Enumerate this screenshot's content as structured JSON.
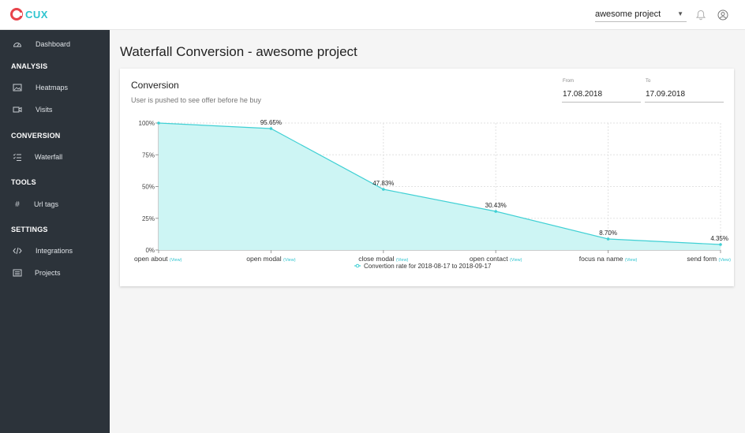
{
  "brand": {
    "name": "CUX"
  },
  "header": {
    "project": "awesome project"
  },
  "sidebar": {
    "dashboard": "Dashboard",
    "analysis_title": "ANALYSIS",
    "heatmaps": "Heatmaps",
    "visits": "Visits",
    "conversion_title": "CONVERSION",
    "waterfall": "Waterfall",
    "tools_title": "TOOLS",
    "url_tags": "Url tags",
    "settings_title": "SETTINGS",
    "integrations": "Integrations",
    "projects": "Projects"
  },
  "page": {
    "title": "Waterfall Conversion - awesome project"
  },
  "card": {
    "title": "Conversion",
    "subtitle": "User is pushed to see offer before he buy",
    "from_label": "From",
    "from_value": "17.08.2018",
    "to_label": "To",
    "to_value": "17.09.2018"
  },
  "chart_data": {
    "type": "area",
    "categories": [
      "open about",
      "open modal",
      "close modal",
      "open contact",
      "focus na name",
      "send form"
    ],
    "view_link_label": "(View)",
    "series": [
      {
        "name": "Convertion rate for 2018-08-17 to 2018-09-17",
        "values": [
          100,
          95.65,
          47.83,
          30.43,
          8.7,
          4.35
        ]
      }
    ],
    "data_labels": [
      "",
      "95.65%",
      "47.83%",
      "30.43%",
      "8.70%",
      "4.35%"
    ],
    "y_ticks": [
      "0%",
      "25%",
      "50%",
      "75%",
      "100%"
    ],
    "ylim": [
      0,
      100
    ],
    "grid": true,
    "legend_position": "bottom",
    "colors": {
      "line": "#3fd0d4",
      "fill": "#cdf5f4"
    }
  }
}
